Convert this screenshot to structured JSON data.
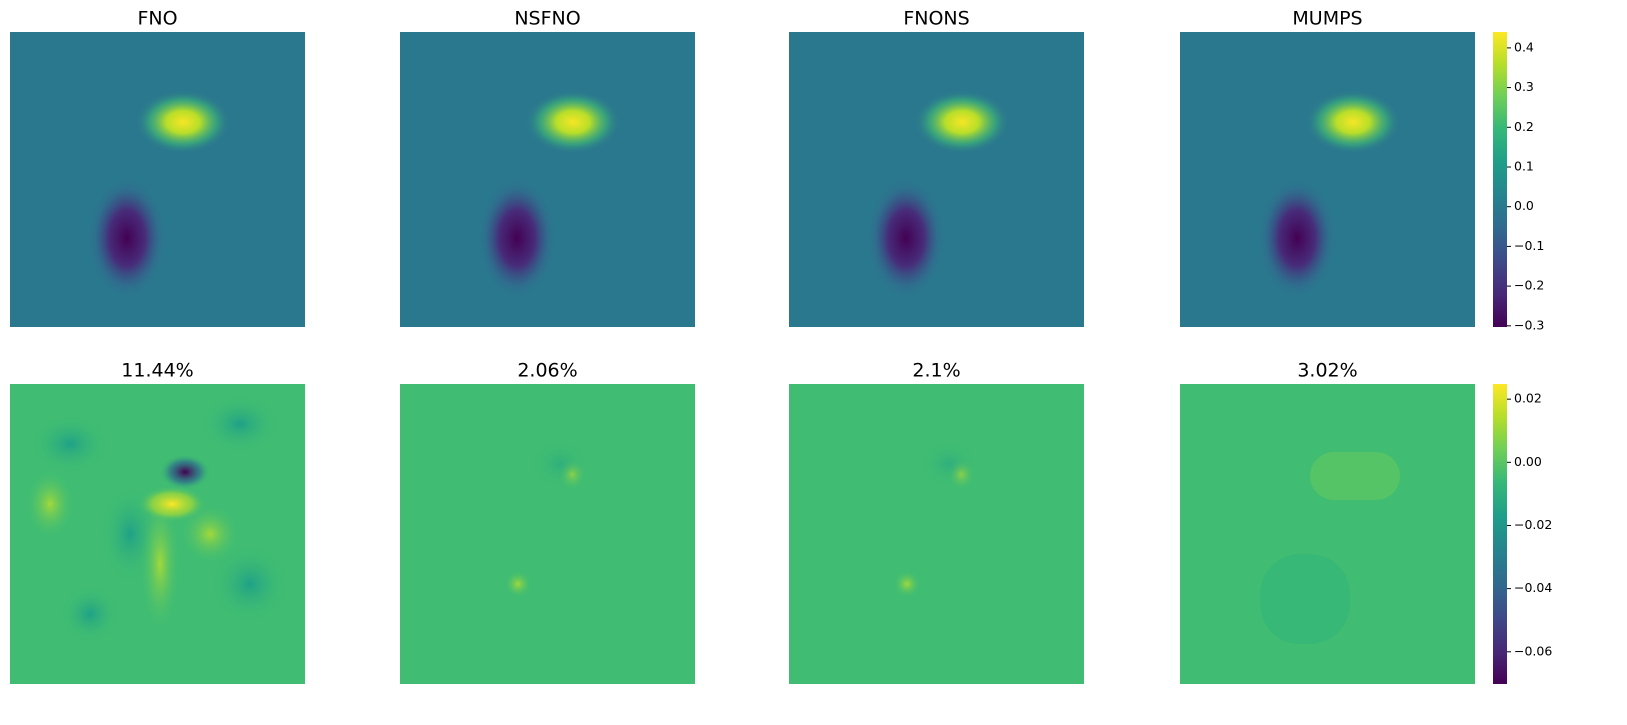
{
  "chart_data": [
    {
      "type": "heatmap",
      "titles": [
        "FNO",
        "NSFNO",
        "FNONS",
        "MUMPS"
      ],
      "colorbar": {
        "lim": [
          -0.303,
          0.44
        ],
        "ticks": [
          {
            "value": -0.3,
            "label": "−0.3"
          },
          {
            "value": -0.2,
            "label": "−0.2"
          },
          {
            "value": -0.1,
            "label": "−0.1"
          },
          {
            "value": 0,
            "label": "0.0"
          },
          0.1,
          0.2,
          0.3,
          0.4
        ]
      }
    },
    {
      "type": "heatmap",
      "titles": [
        "11.44%",
        "2.06%",
        "2.1%",
        "3.02%"
      ],
      "colorbar": {
        "lim": [
          -0.0702,
          0.0248
        ],
        "ticks": [
          {
            "value": -0.06,
            "label": "−0.06"
          },
          {
            "value": -0.04,
            "label": "−0.04"
          },
          {
            "value": -0.02,
            "label": "−0.02"
          },
          {
            "value": 0,
            "label": "0.00"
          },
          0.02
        ]
      }
    }
  ]
}
